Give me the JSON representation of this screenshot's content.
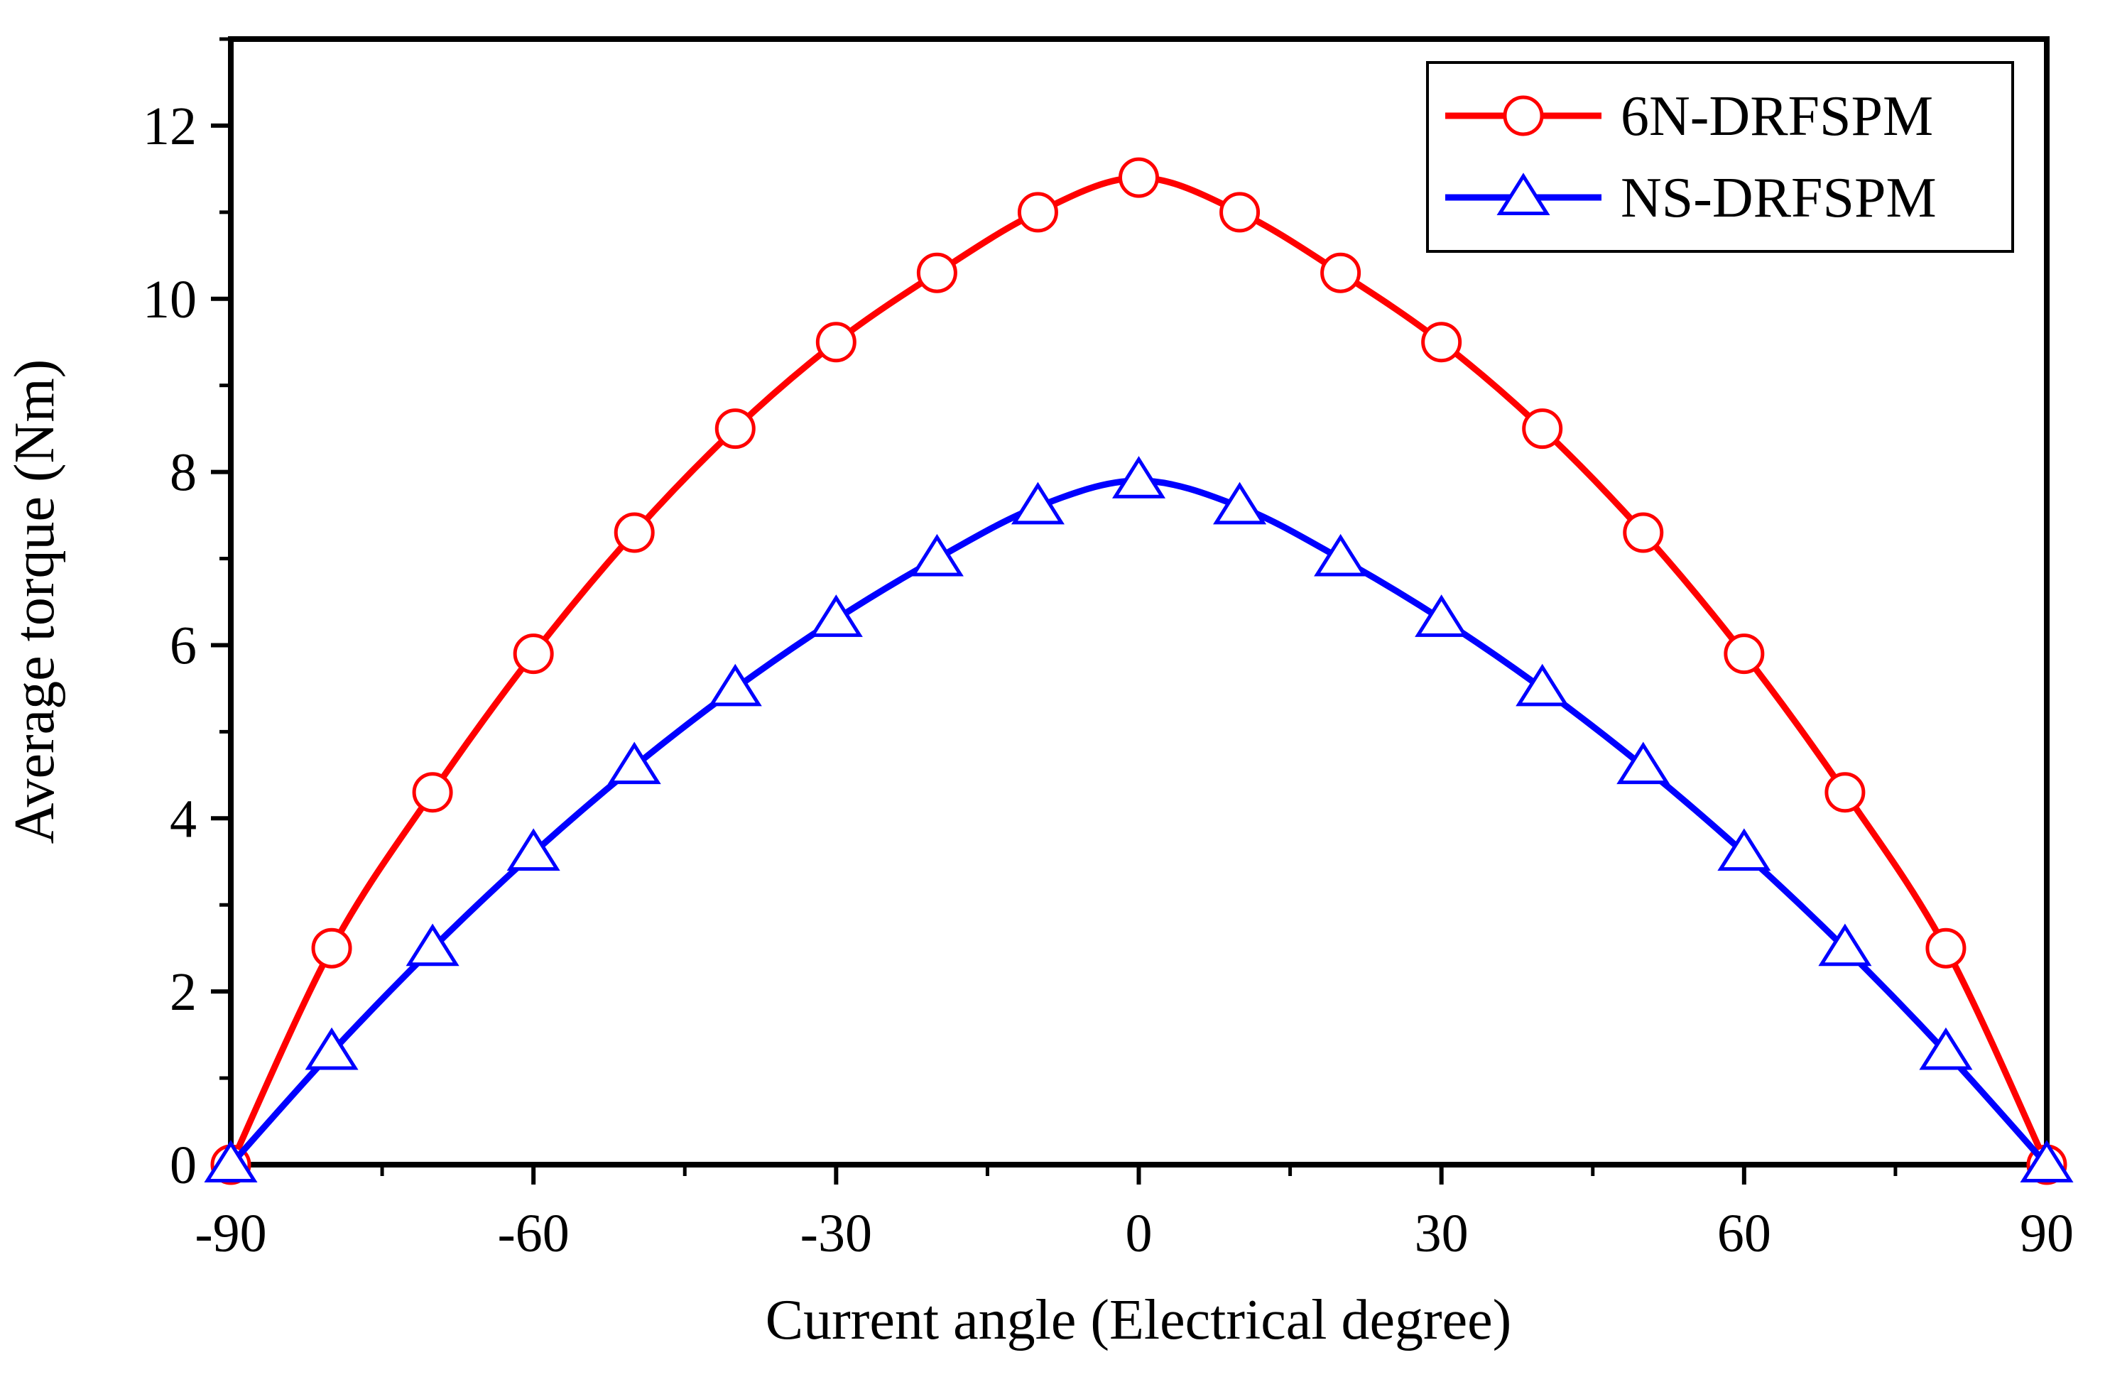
{
  "chart_data": {
    "type": "line",
    "title": "",
    "xlabel": "Current angle (Electrical degree)",
    "ylabel": "Average torque (Nm)",
    "xlim": [
      -90,
      90
    ],
    "ylim": [
      0,
      13
    ],
    "xticks": [
      -90,
      -60,
      -30,
      0,
      30,
      60,
      90
    ],
    "yticks": [
      0,
      2,
      4,
      6,
      8,
      10,
      12
    ],
    "xtick_labels": [
      "-90",
      "-60",
      "-30",
      "0",
      "30",
      "60",
      "90"
    ],
    "ytick_labels": [
      "0",
      "2",
      "4",
      "6",
      "8",
      "10",
      "12"
    ],
    "grid": false,
    "legend_position": "top-right",
    "x": [
      -90,
      -80,
      -70,
      -60,
      -50,
      -40,
      -30,
      -20,
      -10,
      0,
      10,
      20,
      30,
      40,
      50,
      60,
      70,
      80,
      90
    ],
    "series": [
      {
        "name": "6N-DRFSPM",
        "color": "#ff0000",
        "marker": "circle",
        "values": [
          0,
          2.5,
          4.3,
          5.9,
          7.3,
          8.5,
          9.5,
          10.3,
          11.0,
          11.4,
          11.0,
          10.3,
          9.5,
          8.5,
          7.3,
          5.9,
          4.3,
          2.5,
          0
        ]
      },
      {
        "name": "NS-DRFSPM",
        "color": "#0000ff",
        "marker": "triangle",
        "values": [
          0,
          1.3,
          2.5,
          3.6,
          4.6,
          5.5,
          6.3,
          7.0,
          7.6,
          7.9,
          7.6,
          7.0,
          6.3,
          5.5,
          4.6,
          3.6,
          2.5,
          1.3,
          0
        ]
      }
    ]
  }
}
